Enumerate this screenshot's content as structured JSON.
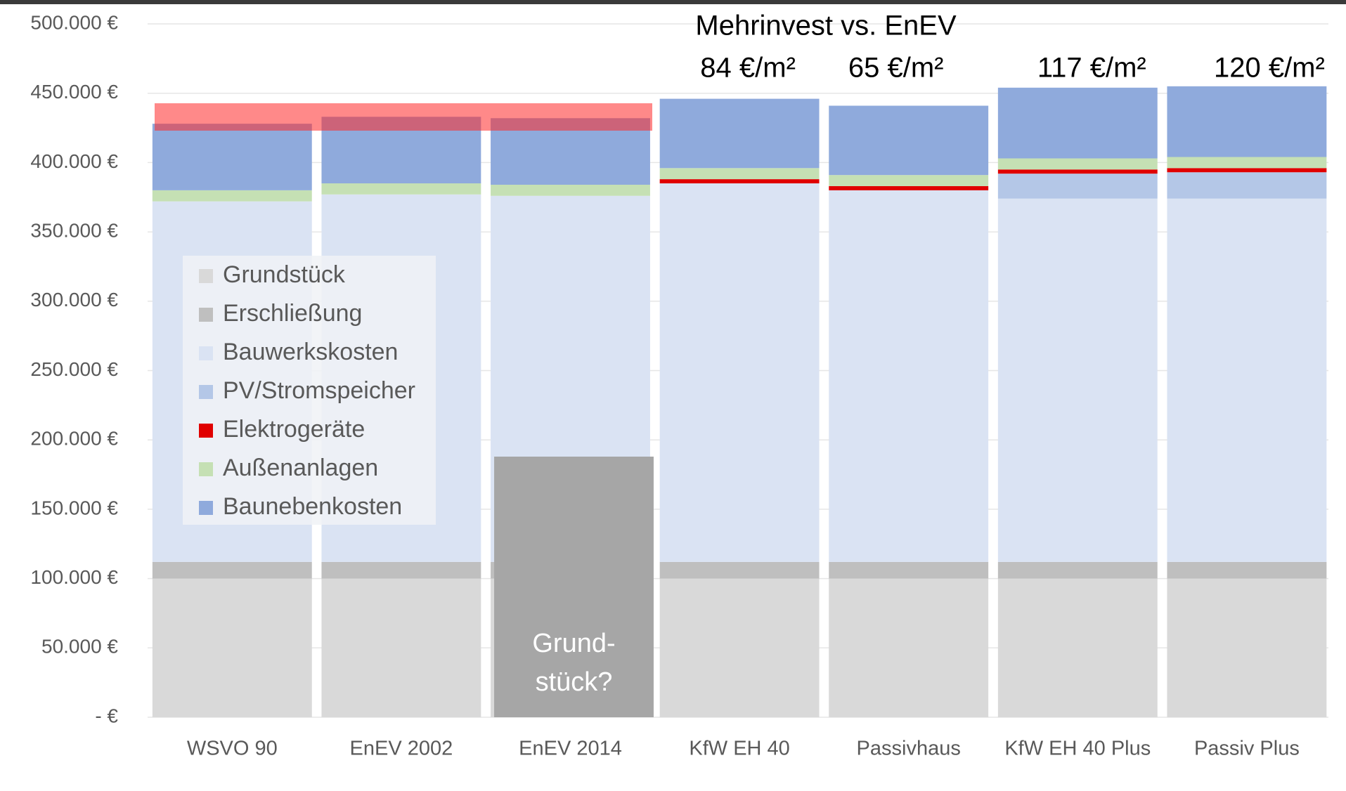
{
  "chart_data": {
    "type": "stacked_bar",
    "categories": [
      "WSVO 90",
      "EnEV 2002",
      "EnEV 2014",
      "KfW EH 40",
      "Passivhaus",
      "KfW EH 40 Plus",
      "Passiv Plus"
    ],
    "series": [
      {
        "name": "Grundstück",
        "color": "#d9d9d9",
        "values": [
          100000,
          100000,
          100000,
          100000,
          100000,
          100000,
          100000
        ]
      },
      {
        "name": "Erschließung",
        "color": "#bfbfbf",
        "values": [
          12000,
          12000,
          12000,
          12000,
          12000,
          12000,
          12000
        ]
      },
      {
        "name": "Bauwerkskosten",
        "color": "#dae3f3",
        "values": [
          260000,
          265000,
          264000,
          273000,
          268000,
          262000,
          262000
        ]
      },
      {
        "name": "PV/Stromspeicher",
        "color": "#b4c7e7",
        "values": [
          0,
          0,
          0,
          0,
          0,
          18000,
          19000
        ]
      },
      {
        "name": "Elektrogeräte",
        "color": "#e00000",
        "values": [
          0,
          0,
          0,
          3000,
          3000,
          3000,
          3000
        ]
      },
      {
        "name": "Außenanlagen",
        "color": "#c5e0b4",
        "values": [
          8000,
          8000,
          8000,
          8000,
          8000,
          8000,
          8000
        ]
      },
      {
        "name": "Baunebenkosten",
        "color": "#8faadc",
        "values": [
          48000,
          48000,
          48000,
          50000,
          50000,
          51000,
          51000
        ]
      }
    ],
    "ylim": [
      0,
      500000
    ],
    "yticks": [
      {
        "value": 0,
        "label": "-  €"
      },
      {
        "value": 50000,
        "label": "50.000 €"
      },
      {
        "value": 100000,
        "label": "100.000 €"
      },
      {
        "value": 150000,
        "label": "150.000 €"
      },
      {
        "value": 200000,
        "label": "200.000 €"
      },
      {
        "value": 250000,
        "label": "250.000 €"
      },
      {
        "value": 300000,
        "label": "300.000 €"
      },
      {
        "value": 350000,
        "label": "350.000 €"
      },
      {
        "value": 400000,
        "label": "400.000 €"
      },
      {
        "value": 450000,
        "label": "450.000 €"
      },
      {
        "value": 500000,
        "label": "500.000 €"
      }
    ],
    "grid": true,
    "legend": "left",
    "mehrinvest": {
      "title": "Mehrinvest vs. EnEV",
      "labels": [
        null,
        null,
        null,
        "84 €/m²",
        "65 €/m²",
        "117 €/m²",
        "120 €/m²"
      ]
    },
    "overlay_label": [
      "Grund-",
      "stück?"
    ]
  }
}
